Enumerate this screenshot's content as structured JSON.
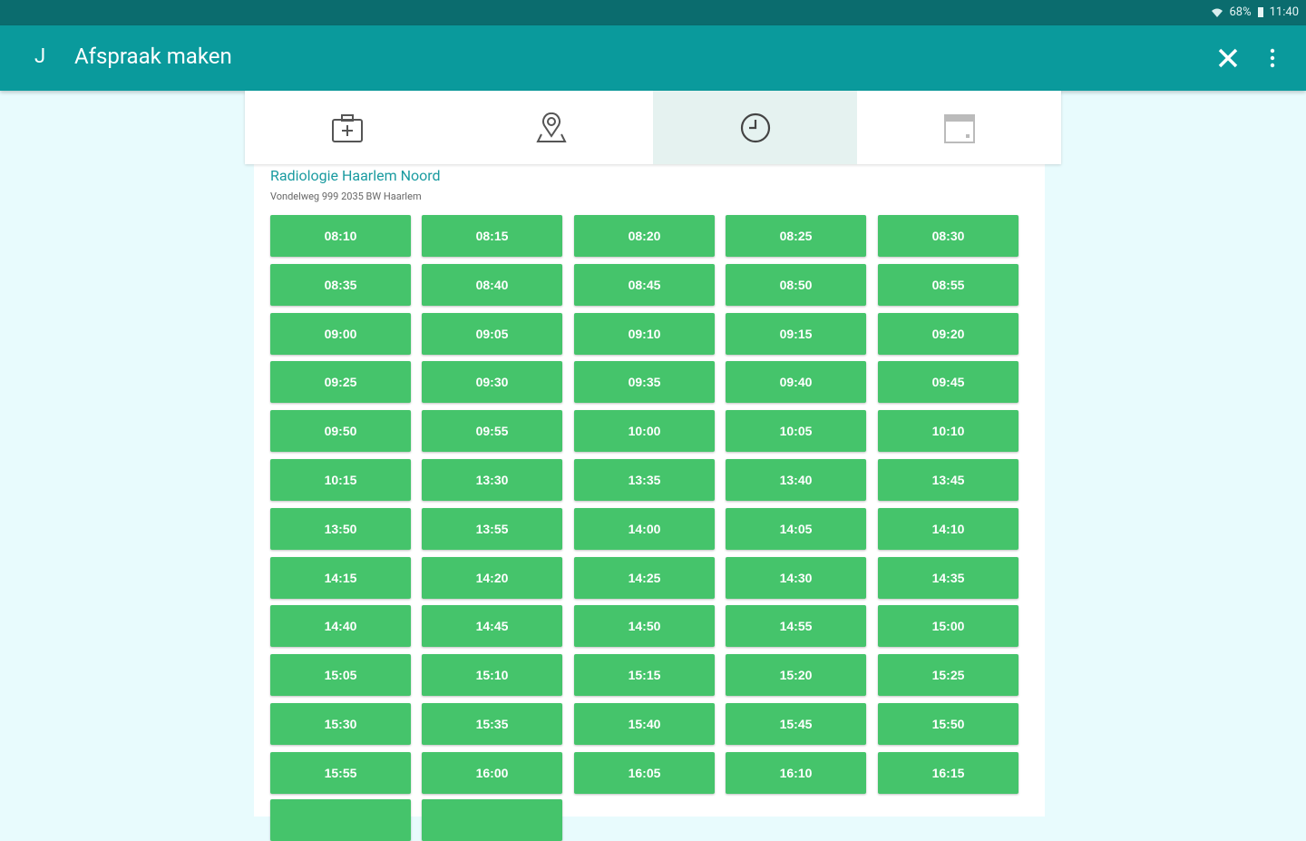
{
  "status_bar": {
    "battery": "68%",
    "time": "11:40"
  },
  "app_bar": {
    "avatar": "J",
    "title": "Afspraak maken"
  },
  "location": {
    "name": "Radiologie Haarlem Noord",
    "address": "Vondelweg 999 2035 BW Haarlem"
  },
  "time_slots": [
    "08:10",
    "08:15",
    "08:20",
    "08:25",
    "08:30",
    "08:35",
    "08:40",
    "08:45",
    "08:50",
    "08:55",
    "09:00",
    "09:05",
    "09:10",
    "09:15",
    "09:20",
    "09:25",
    "09:30",
    "09:35",
    "09:40",
    "09:45",
    "09:50",
    "09:55",
    "10:00",
    "10:05",
    "10:10",
    "10:15",
    "13:30",
    "13:35",
    "13:40",
    "13:45",
    "13:50",
    "13:55",
    "14:00",
    "14:05",
    "14:10",
    "14:15",
    "14:20",
    "14:25",
    "14:30",
    "14:35",
    "14:40",
    "14:45",
    "14:50",
    "14:55",
    "15:00",
    "15:05",
    "15:10",
    "15:15",
    "15:20",
    "15:25",
    "15:30",
    "15:35",
    "15:40",
    "15:45",
    "15:50",
    "15:55",
    "16:00",
    "16:05",
    "16:10",
    "16:15"
  ]
}
